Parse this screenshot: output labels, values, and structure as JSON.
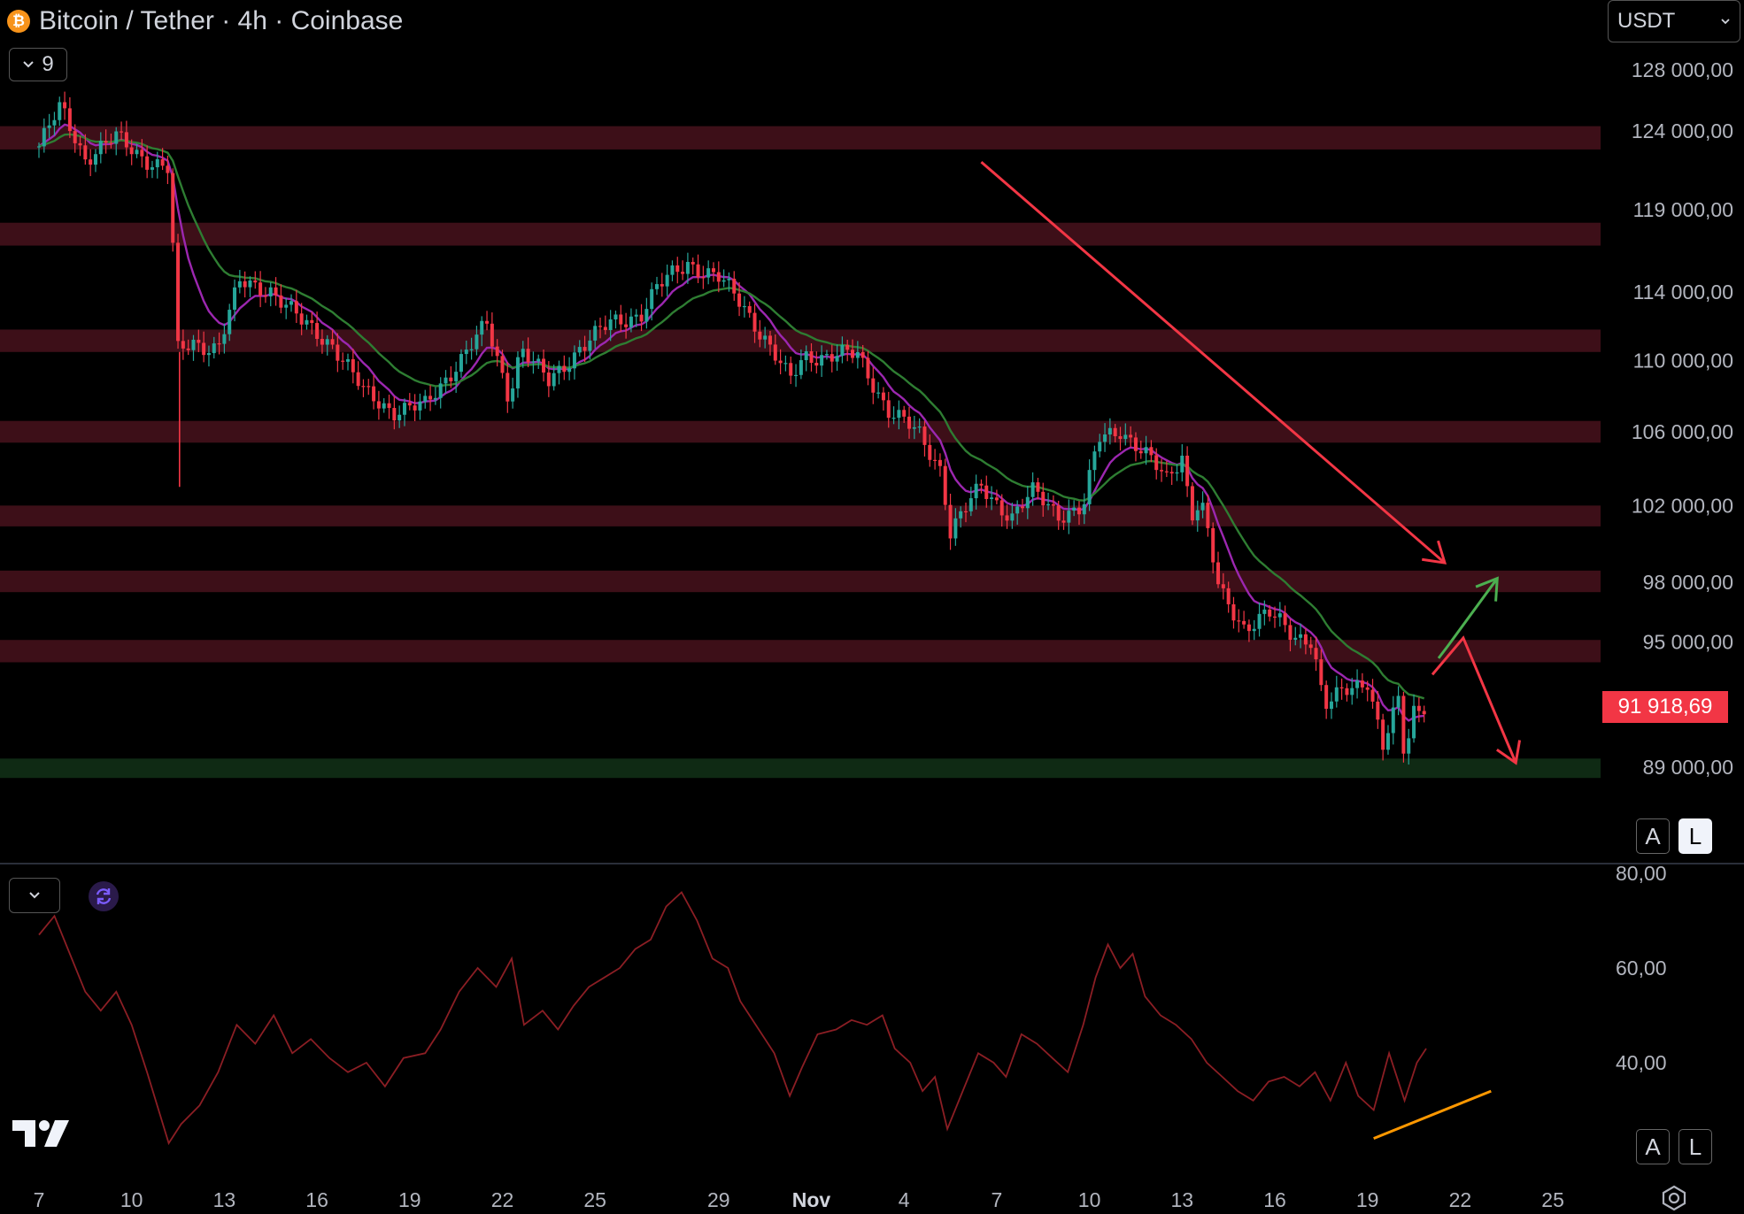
{
  "header": {
    "symbol_title": "Bitcoin / Tether · 4h · Coinbase",
    "indicator_count": "9",
    "currency": "USDT",
    "last_price": "91 918,69"
  },
  "scale_buttons": {
    "auto": "A",
    "log": "L"
  },
  "icons": {
    "coin": "bitcoin-icon",
    "collapse": "chevron-down-icon",
    "refresh": "refresh-icon",
    "logo": "tradingview-logo-icon",
    "settings": "settings-gear-icon"
  },
  "colors": {
    "up": "#26a69a",
    "down": "#f23645",
    "zone_red": "#3d0f18",
    "zone_green": "#0f2a14",
    "ema_fast": "#9c27b0",
    "ema_slow": "#2e7d32",
    "rsi": "#8b1e24",
    "trend_line": "#f23645",
    "rsi_divergence": "#ff9800",
    "bull_arrow": "#4caf50"
  },
  "chart_data": [
    {
      "type": "candlestick",
      "title": "Bitcoin / Tether · 4h · Coinbase",
      "ylim": [
        86000,
        130000
      ],
      "y_scale": "log",
      "price_ticks": [
        {
          "value": 128000,
          "label": "128 000,00"
        },
        {
          "value": 124000,
          "label": "124 000,00"
        },
        {
          "value": 119000,
          "label": "119 000,00"
        },
        {
          "value": 114000,
          "label": "114 000,00"
        },
        {
          "value": 110000,
          "label": "110 000,00"
        },
        {
          "value": 106000,
          "label": "106 000,00"
        },
        {
          "value": 102000,
          "label": "102 000,00"
        },
        {
          "value": 98000,
          "label": "98 000,00"
        },
        {
          "value": 95000,
          "label": "95 000,00"
        },
        {
          "value": 89000,
          "label": "89 000,00"
        }
      ],
      "x_ticks": [
        "7",
        "10",
        "13",
        "16",
        "19",
        "22",
        "25",
        "29",
        "Nov",
        "4",
        "7",
        "10",
        "13",
        "16",
        "19",
        "22",
        "25"
      ],
      "x_tick_day_index": [
        0,
        3,
        6,
        9,
        12,
        15,
        18,
        22,
        25,
        28,
        31,
        34,
        37,
        40,
        43,
        46,
        49
      ],
      "price_path": [
        [
          0,
          123000
        ],
        [
          0.7,
          125500
        ],
        [
          1.5,
          122300
        ],
        [
          2.5,
          123500
        ],
        [
          3.5,
          122200
        ],
        [
          4.2,
          121500
        ],
        [
          4.5,
          110500
        ],
        [
          5.0,
          111000
        ],
        [
          5.8,
          110800
        ],
        [
          6.5,
          114500
        ],
        [
          7.5,
          114200
        ],
        [
          8.5,
          112200
        ],
        [
          9.5,
          111000
        ],
        [
          10.5,
          108200
        ],
        [
          11.5,
          107200
        ],
        [
          12.5,
          107400
        ],
        [
          13.5,
          109800
        ],
        [
          14.5,
          112000
        ],
        [
          15.2,
          108000
        ],
        [
          15.6,
          110800
        ],
        [
          16.5,
          108700
        ],
        [
          17.5,
          110800
        ],
        [
          18.5,
          112100
        ],
        [
          19.5,
          112800
        ],
        [
          20.0,
          114200
        ],
        [
          21.0,
          115800
        ],
        [
          22.0,
          114800
        ],
        [
          22.8,
          113200
        ],
        [
          23.5,
          111300
        ],
        [
          24.3,
          108800
        ],
        [
          24.8,
          110300
        ],
        [
          25.5,
          110300
        ],
        [
          26.5,
          110300
        ],
        [
          27.5,
          107200
        ],
        [
          28.5,
          105800
        ],
        [
          29.2,
          104000
        ],
        [
          29.5,
          100600
        ],
        [
          30.5,
          103000
        ],
        [
          31.5,
          101400
        ],
        [
          32.2,
          102700
        ],
        [
          33.0,
          101600
        ],
        [
          33.8,
          101800
        ],
        [
          34.3,
          105600
        ],
        [
          35.0,
          106200
        ],
        [
          35.8,
          104700
        ],
        [
          36.5,
          103400
        ],
        [
          37.0,
          104800
        ],
        [
          37.3,
          101500
        ],
        [
          37.6,
          102300
        ],
        [
          38.2,
          97500
        ],
        [
          39.0,
          95800
        ],
        [
          39.8,
          96400
        ],
        [
          40.6,
          95300
        ],
        [
          41.2,
          95200
        ],
        [
          41.6,
          91800
        ],
        [
          42.3,
          92600
        ],
        [
          43.0,
          93200
        ],
        [
          43.5,
          90000
        ],
        [
          44.0,
          92000
        ],
        [
          44.2,
          89300
        ],
        [
          44.5,
          91600
        ],
        [
          44.9,
          92100
        ]
      ],
      "moving_averages": [
        {
          "name": "EMA fast",
          "color": "#9c27b0"
        },
        {
          "name": "EMA slow",
          "color": "#2e7d32"
        }
      ],
      "zones": [
        {
          "low": 122800,
          "high": 124300,
          "color": "red"
        },
        {
          "low": 116800,
          "high": 118200,
          "color": "red"
        },
        {
          "low": 110500,
          "high": 111800,
          "color": "red"
        },
        {
          "low": 105400,
          "high": 106600,
          "color": "red"
        },
        {
          "low": 100900,
          "high": 102000,
          "color": "red"
        },
        {
          "low": 97500,
          "high": 98600,
          "color": "red"
        },
        {
          "low": 94000,
          "high": 95100,
          "color": "red"
        },
        {
          "low": 88500,
          "high": 89400,
          "color": "green"
        }
      ],
      "annotations": [
        {
          "kind": "trend_arrow",
          "color": "red",
          "from": [
            30.5,
            122000
          ],
          "to": [
            45.5,
            99000
          ]
        },
        {
          "kind": "scenario_arrow",
          "color": "green",
          "points": [
            [
              45.3,
              94200
            ],
            [
              45.6,
              94800
            ],
            [
              47.2,
              98200
            ]
          ]
        },
        {
          "kind": "scenario_arrow",
          "color": "red",
          "points": [
            [
              45.1,
              93400
            ],
            [
              46.1,
              95200
            ],
            [
              47.8,
              89200
            ]
          ]
        }
      ],
      "last_price": 91918.69
    },
    {
      "type": "line",
      "ylim": [
        20,
        80
      ],
      "y_ticks": [
        {
          "value": 80,
          "label": "80,00"
        },
        {
          "value": 60,
          "label": "60,00"
        },
        {
          "value": 40,
          "label": "40,00"
        }
      ],
      "series": [
        {
          "color": "#8b1e24",
          "points": [
            [
              0,
              67
            ],
            [
              0.5,
              71
            ],
            [
              1.0,
              63
            ],
            [
              1.5,
              55
            ],
            [
              2.0,
              51
            ],
            [
              2.5,
              55
            ],
            [
              3.0,
              48
            ],
            [
              3.5,
              38
            ],
            [
              4.2,
              23
            ],
            [
              4.6,
              27
            ],
            [
              5.2,
              31
            ],
            [
              5.8,
              38
            ],
            [
              6.4,
              48
            ],
            [
              7.0,
              44
            ],
            [
              7.6,
              50
            ],
            [
              8.2,
              42
            ],
            [
              8.8,
              45
            ],
            [
              9.4,
              41
            ],
            [
              10.0,
              38
            ],
            [
              10.6,
              40
            ],
            [
              11.2,
              35
            ],
            [
              11.8,
              41
            ],
            [
              12.5,
              42
            ],
            [
              13.0,
              47
            ],
            [
              13.6,
              55
            ],
            [
              14.2,
              60
            ],
            [
              14.8,
              56
            ],
            [
              15.3,
              62
            ],
            [
              15.7,
              48
            ],
            [
              16.3,
              51
            ],
            [
              16.8,
              47
            ],
            [
              17.3,
              52
            ],
            [
              17.8,
              56
            ],
            [
              18.3,
              58
            ],
            [
              18.8,
              60
            ],
            [
              19.3,
              64
            ],
            [
              19.8,
              66
            ],
            [
              20.3,
              73
            ],
            [
              20.8,
              76
            ],
            [
              21.3,
              70
            ],
            [
              21.8,
              62
            ],
            [
              22.3,
              60
            ],
            [
              22.7,
              53
            ],
            [
              23.2,
              48
            ],
            [
              23.8,
              42
            ],
            [
              24.3,
              33
            ],
            [
              24.7,
              39
            ],
            [
              25.2,
              46
            ],
            [
              25.8,
              47
            ],
            [
              26.3,
              49
            ],
            [
              26.8,
              48
            ],
            [
              27.3,
              50
            ],
            [
              27.7,
              43
            ],
            [
              28.2,
              40
            ],
            [
              28.6,
              34
            ],
            [
              29.0,
              37
            ],
            [
              29.4,
              26
            ],
            [
              29.9,
              34
            ],
            [
              30.4,
              42
            ],
            [
              30.9,
              40
            ],
            [
              31.3,
              37
            ],
            [
              31.8,
              46
            ],
            [
              32.3,
              44
            ],
            [
              32.8,
              41
            ],
            [
              33.3,
              38
            ],
            [
              33.8,
              48
            ],
            [
              34.2,
              58
            ],
            [
              34.6,
              65
            ],
            [
              35.0,
              60
            ],
            [
              35.4,
              63
            ],
            [
              35.8,
              54
            ],
            [
              36.3,
              50
            ],
            [
              36.8,
              48
            ],
            [
              37.3,
              45
            ],
            [
              37.8,
              40
            ],
            [
              38.3,
              37
            ],
            [
              38.8,
              34
            ],
            [
              39.3,
              32
            ],
            [
              39.8,
              36
            ],
            [
              40.3,
              37
            ],
            [
              40.8,
              35
            ],
            [
              41.3,
              38
            ],
            [
              41.8,
              32
            ],
            [
              42.3,
              40
            ],
            [
              42.7,
              33
            ],
            [
              43.2,
              30
            ],
            [
              43.7,
              42
            ],
            [
              44.2,
              32
            ],
            [
              44.6,
              40
            ],
            [
              44.9,
              43
            ]
          ]
        }
      ],
      "annotations": [
        {
          "kind": "divergence_line",
          "color": "orange",
          "from": [
            43.2,
            24
          ],
          "to": [
            47.0,
            34
          ]
        }
      ]
    }
  ]
}
